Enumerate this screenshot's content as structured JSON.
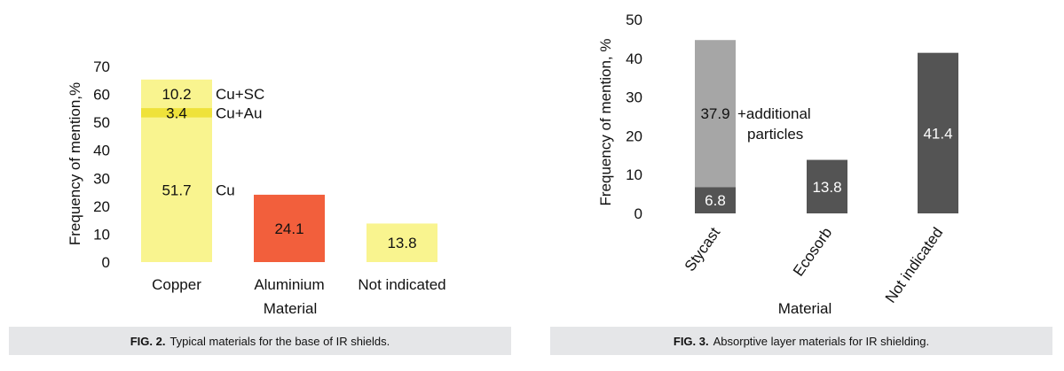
{
  "figure2": {
    "caption_label": "FIG. 2.",
    "caption_text": "Typical materials for the base of IR shields.",
    "colors": {
      "cu": "#f9f48f",
      "cu_au": "#efe23a",
      "cu_sc": "#f9f48f",
      "aluminium": "#f25f3c",
      "not_indicated": "#f9f48f"
    },
    "chart_data": {
      "type": "bar",
      "stacked": true,
      "categories": [
        "Copper",
        "Aluminium",
        "Not indicated"
      ],
      "series": [
        {
          "name": "Cu",
          "values": [
            51.7,
            0,
            0
          ]
        },
        {
          "name": "Cu+Au",
          "values": [
            3.4,
            0,
            0
          ]
        },
        {
          "name": "Cu+SC",
          "values": [
            10.2,
            0,
            0
          ]
        },
        {
          "name": "",
          "values": [
            0,
            24.1,
            13.8
          ]
        }
      ],
      "data_labels": [
        "10.2",
        "3.4",
        "51.7",
        "24.1",
        "13.8"
      ],
      "xlabel": "Material",
      "ylabel": "Frequency of mention,%",
      "ylim": [
        0,
        70
      ],
      "yticks": [
        0,
        10,
        20,
        30,
        40,
        50,
        60,
        70
      ],
      "grid": false
    }
  },
  "figure3": {
    "caption_label": "FIG. 3.",
    "caption_text": "Absorptive layer materials for IR shielding.",
    "colors": {
      "base": "#545454",
      "additional": "#a6a6a6"
    },
    "annotation_lines": [
      "+additional",
      "particles"
    ],
    "chart_data": {
      "type": "bar",
      "stacked": true,
      "categories": [
        "Stycast",
        "Ecosorb",
        "Not indicated"
      ],
      "series": [
        {
          "name": "",
          "values": [
            6.8,
            13.8,
            41.4
          ]
        },
        {
          "name": "+additional particles",
          "values": [
            37.9,
            0,
            0
          ]
        }
      ],
      "data_labels": [
        "37.9",
        "6.8",
        "13.8",
        "41.4"
      ],
      "xlabel": "Material",
      "ylabel": "Frequency of mention, %",
      "ylim": [
        0,
        50
      ],
      "yticks": [
        0,
        10,
        20,
        30,
        40,
        50
      ],
      "xtick_rotation": -55,
      "grid": false
    }
  }
}
